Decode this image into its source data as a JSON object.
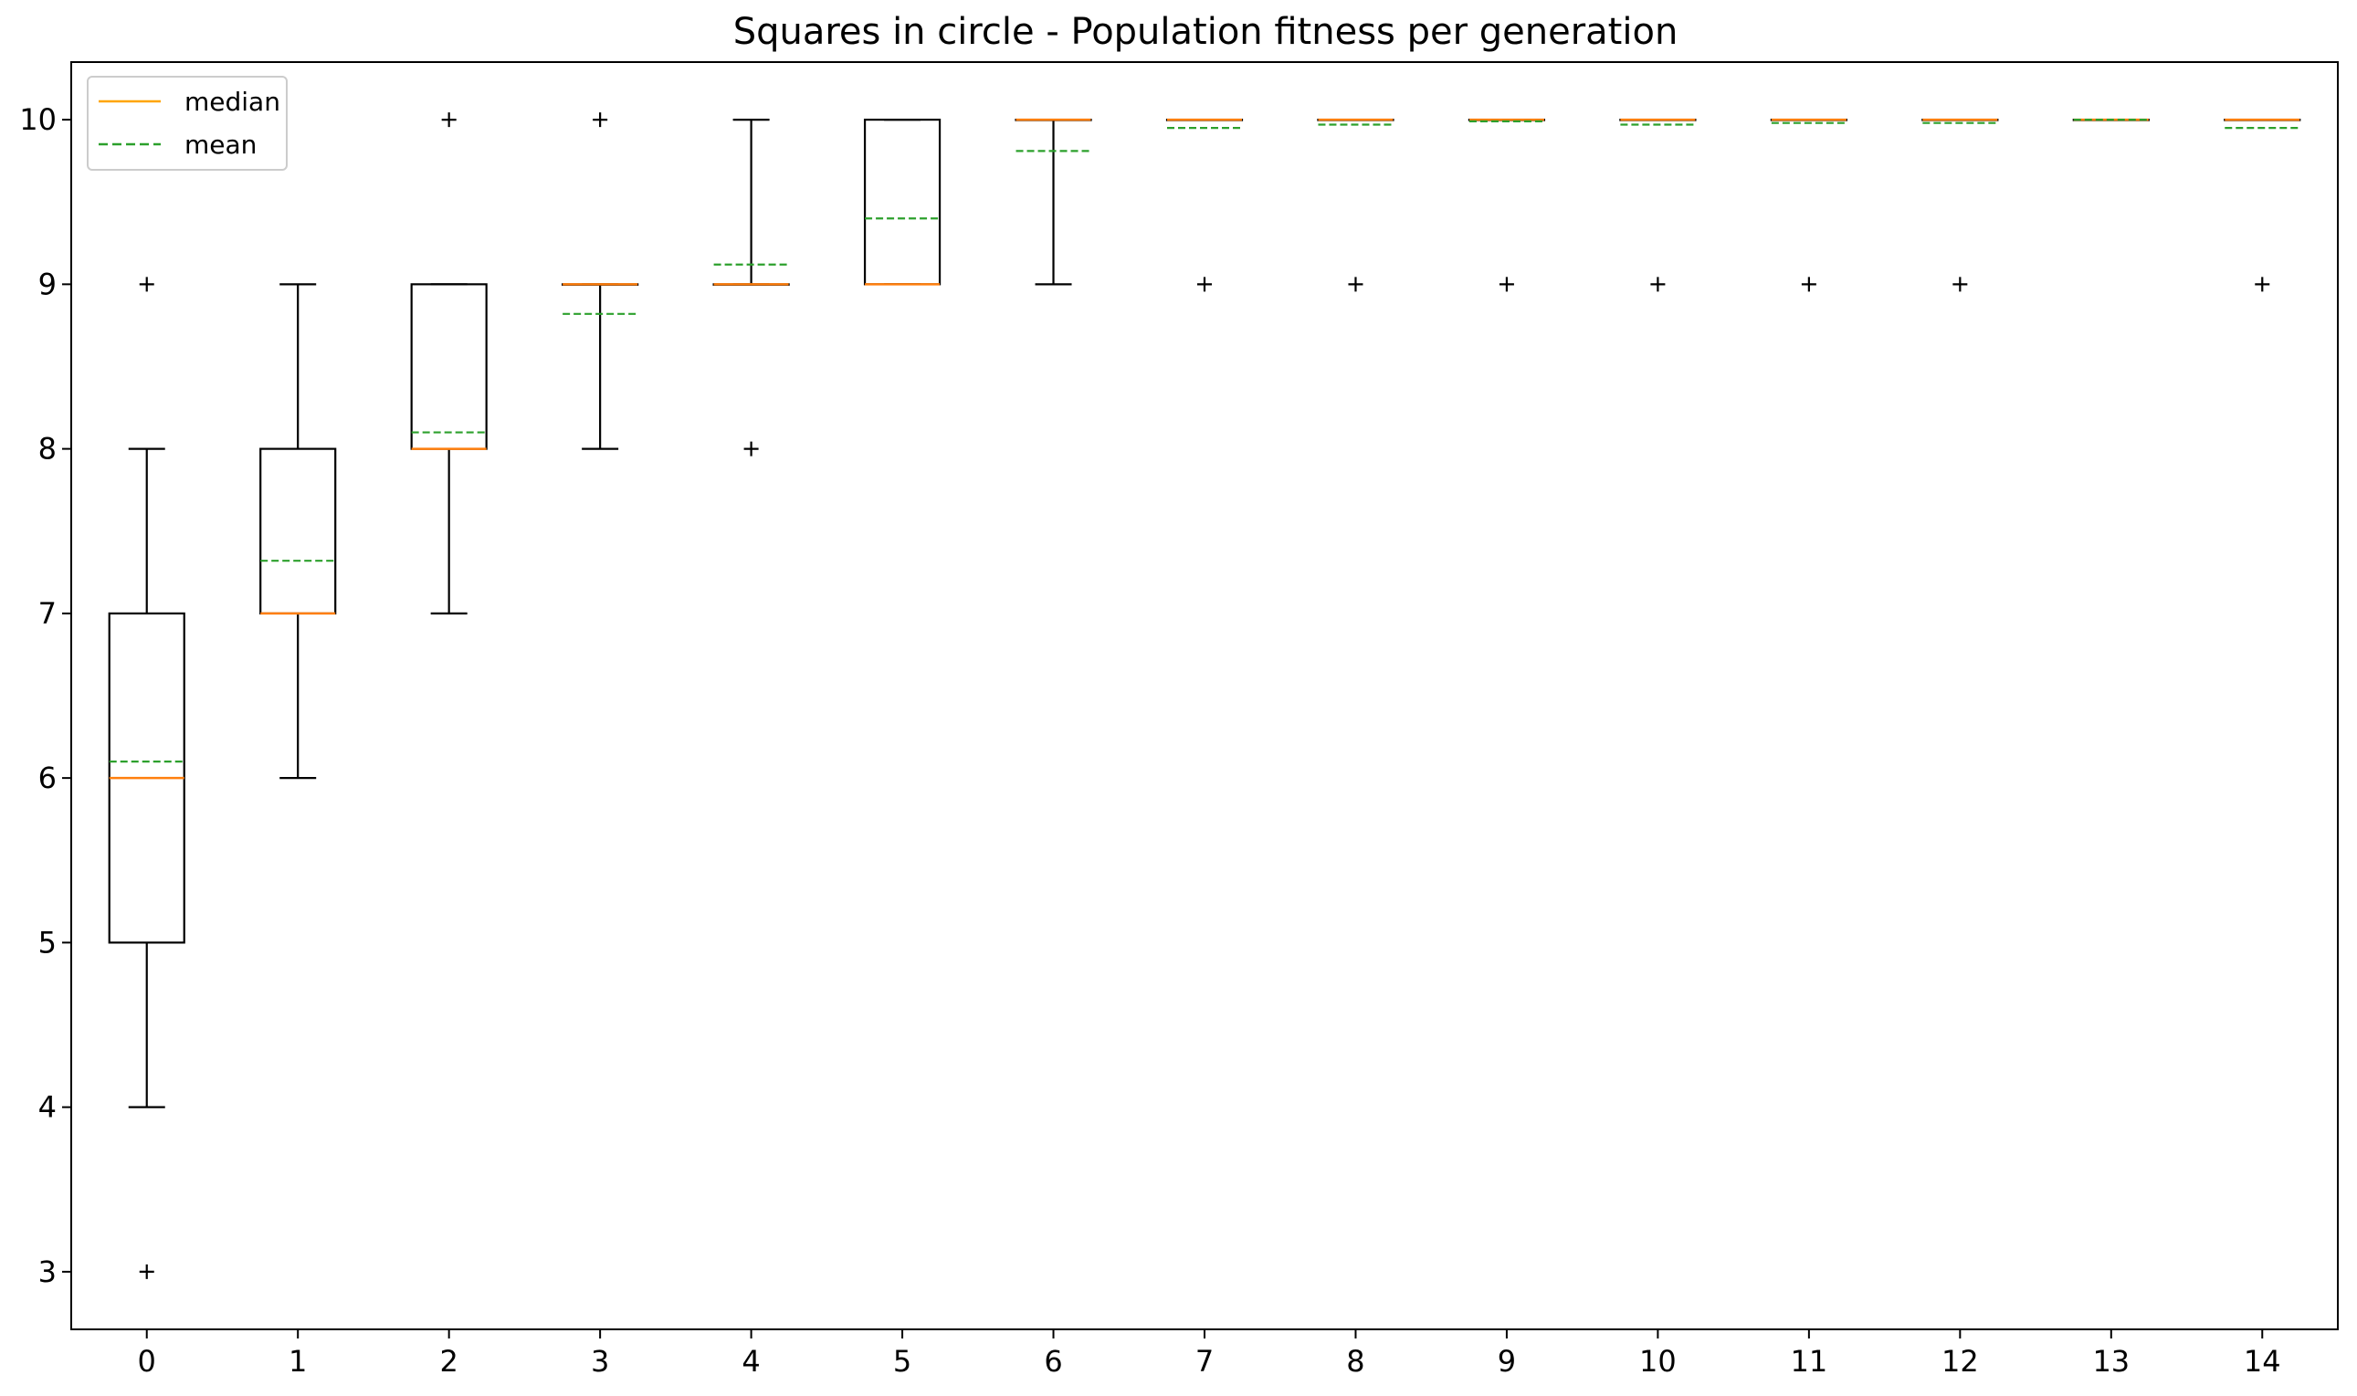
{
  "chart_data": {
    "type": "box",
    "title": "Squares in circle - Population fitness per generation",
    "xlabel": "",
    "ylabel": "",
    "ylim": [
      2.65,
      10.35
    ],
    "xlim": [
      -0.5,
      14.5
    ],
    "yticks": [
      3,
      4,
      5,
      6,
      7,
      8,
      9,
      10
    ],
    "categories": [
      "0",
      "1",
      "2",
      "3",
      "4",
      "5",
      "6",
      "7",
      "8",
      "9",
      "10",
      "11",
      "12",
      "13",
      "14"
    ],
    "legend": {
      "position": "top-left",
      "entries": [
        {
          "label": "median",
          "style": "solid",
          "color": "#ffa500"
        },
        {
          "label": "mean",
          "style": "dashed",
          "color": "#2ca02c"
        }
      ]
    },
    "colors": {
      "box": "#000000",
      "median": "#ff7f0e",
      "mean": "#2ca02c"
    },
    "boxes": [
      {
        "generation": 0,
        "whisker_low": 4,
        "q1": 5,
        "median": 6,
        "q3": 7,
        "whisker_high": 8,
        "mean": 6.1,
        "outliers": [
          3,
          9
        ]
      },
      {
        "generation": 1,
        "whisker_low": 6,
        "q1": 7,
        "median": 7,
        "q3": 8,
        "whisker_high": 9,
        "mean": 7.32,
        "outliers": []
      },
      {
        "generation": 2,
        "whisker_low": 7,
        "q1": 8,
        "median": 8,
        "q3": 9,
        "whisker_high": 9,
        "mean": 8.1,
        "outliers": [
          10
        ]
      },
      {
        "generation": 3,
        "whisker_low": 8,
        "q1": 9,
        "median": 9,
        "q3": 9,
        "whisker_high": 9,
        "mean": 8.82,
        "outliers": [
          10
        ]
      },
      {
        "generation": 4,
        "whisker_low": 9,
        "q1": 9,
        "median": 9,
        "q3": 9,
        "whisker_high": 10,
        "mean": 9.12,
        "outliers": [
          8
        ]
      },
      {
        "generation": 5,
        "whisker_low": 9,
        "q1": 9,
        "median": 9,
        "q3": 10,
        "whisker_high": 10,
        "mean": 9.4,
        "outliers": []
      },
      {
        "generation": 6,
        "whisker_low": 9,
        "q1": 10,
        "median": 10,
        "q3": 10,
        "whisker_high": 10,
        "mean": 9.81,
        "outliers": []
      },
      {
        "generation": 7,
        "whisker_low": 10,
        "q1": 10,
        "median": 10,
        "q3": 10,
        "whisker_high": 10,
        "mean": 9.95,
        "outliers": [
          9
        ]
      },
      {
        "generation": 8,
        "whisker_low": 10,
        "q1": 10,
        "median": 10,
        "q3": 10,
        "whisker_high": 10,
        "mean": 9.97,
        "outliers": [
          9
        ]
      },
      {
        "generation": 9,
        "whisker_low": 10,
        "q1": 10,
        "median": 10,
        "q3": 10,
        "whisker_high": 10,
        "mean": 9.99,
        "outliers": [
          9
        ]
      },
      {
        "generation": 10,
        "whisker_low": 10,
        "q1": 10,
        "median": 10,
        "q3": 10,
        "whisker_high": 10,
        "mean": 9.97,
        "outliers": [
          9
        ]
      },
      {
        "generation": 11,
        "whisker_low": 10,
        "q1": 10,
        "median": 10,
        "q3": 10,
        "whisker_high": 10,
        "mean": 9.98,
        "outliers": [
          9
        ]
      },
      {
        "generation": 12,
        "whisker_low": 10,
        "q1": 10,
        "median": 10,
        "q3": 10,
        "whisker_high": 10,
        "mean": 9.98,
        "outliers": [
          9
        ]
      },
      {
        "generation": 13,
        "whisker_low": 10,
        "q1": 10,
        "median": 10,
        "q3": 10,
        "whisker_high": 10,
        "mean": 10,
        "outliers": []
      },
      {
        "generation": 14,
        "whisker_low": 10,
        "q1": 10,
        "median": 10,
        "q3": 10,
        "whisker_high": 10,
        "mean": 9.95,
        "outliers": [
          9
        ]
      }
    ]
  }
}
